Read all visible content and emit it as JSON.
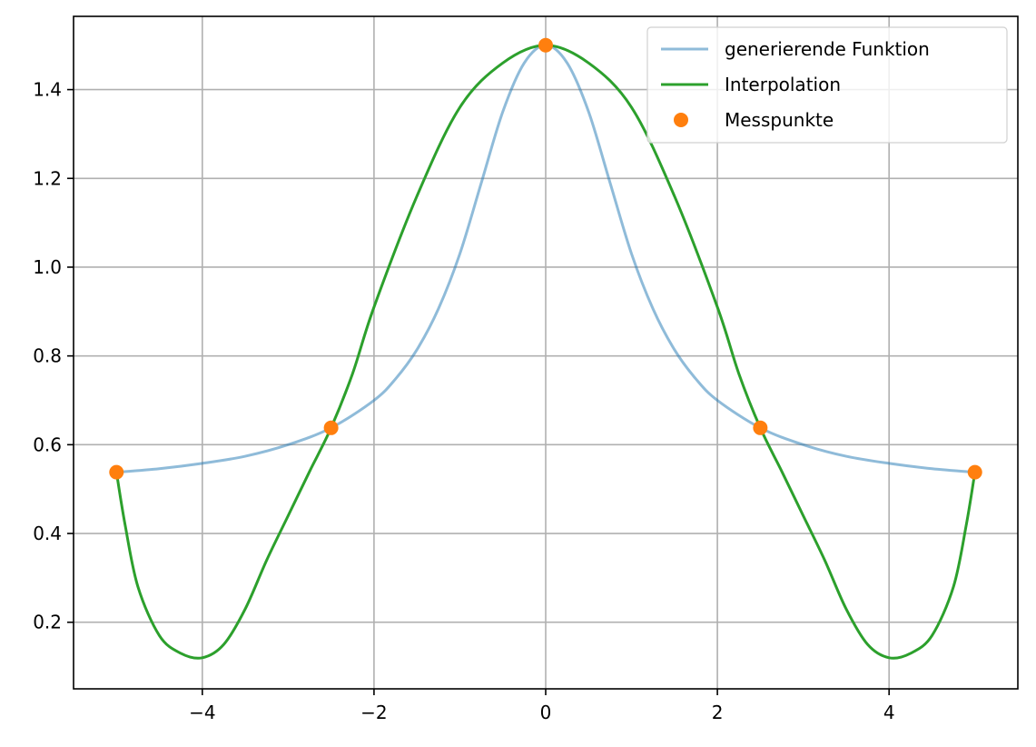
{
  "chart_data": {
    "type": "line",
    "title": "",
    "xlabel": "",
    "ylabel": "",
    "xlim": [
      -5.5,
      5.5
    ],
    "ylim": [
      0.05,
      1.565
    ],
    "xticks": [
      -4,
      -2,
      0,
      2,
      4
    ],
    "xtick_labels": [
      "−4",
      "−2",
      "0",
      "2",
      "4"
    ],
    "yticks": [
      0.2,
      0.4,
      0.6,
      0.8,
      1.0,
      1.2,
      1.4
    ],
    "ytick_labels": [
      "0.2",
      "0.4",
      "0.6",
      "0.8",
      "1.0",
      "1.2",
      "1.4"
    ],
    "grid": true,
    "legend_position": "top-right",
    "series": [
      {
        "name": "generierende Funktion",
        "kind": "line",
        "color": "#1f77b4",
        "alpha": 0.5,
        "x": [
          -5.0,
          -4.5,
          -4.0,
          -3.5,
          -3.0,
          -2.5,
          -2.0,
          -1.75,
          -1.5,
          -1.25,
          -1.0,
          -0.75,
          -0.5,
          -0.25,
          0.0,
          0.25,
          0.5,
          0.75,
          1.0,
          1.25,
          1.5,
          1.75,
          2.0,
          2.5,
          3.0,
          3.5,
          4.0,
          4.5,
          5.0
        ],
        "y": [
          0.538,
          0.546,
          0.558,
          0.574,
          0.6,
          0.638,
          0.7,
          0.748,
          0.814,
          0.906,
          1.03,
          1.19,
          1.35,
          1.46,
          1.5,
          1.46,
          1.35,
          1.19,
          1.03,
          0.906,
          0.814,
          0.748,
          0.7,
          0.638,
          0.6,
          0.574,
          0.558,
          0.546,
          0.538
        ]
      },
      {
        "name": "Interpolation",
        "kind": "line",
        "color": "#2ca02c",
        "alpha": 1.0,
        "x": [
          -5.0,
          -4.9,
          -4.75,
          -4.5,
          -4.25,
          -4.0,
          -3.75,
          -3.5,
          -3.25,
          -3.0,
          -2.75,
          -2.5,
          -2.25,
          -2.0,
          -1.5,
          -1.0,
          -0.5,
          0.0,
          0.5,
          1.0,
          1.5,
          2.0,
          2.25,
          2.5,
          2.75,
          3.0,
          3.25,
          3.5,
          3.75,
          4.0,
          4.25,
          4.5,
          4.75,
          4.9,
          5.0
        ],
        "y": [
          0.538,
          0.42,
          0.28,
          0.17,
          0.13,
          0.12,
          0.15,
          0.23,
          0.34,
          0.44,
          0.54,
          0.638,
          0.76,
          0.91,
          1.16,
          1.36,
          1.46,
          1.5,
          1.46,
          1.36,
          1.16,
          0.91,
          0.76,
          0.638,
          0.54,
          0.44,
          0.34,
          0.23,
          0.15,
          0.12,
          0.13,
          0.17,
          0.28,
          0.42,
          0.538
        ]
      },
      {
        "name": "Messpunkte",
        "kind": "scatter",
        "color": "#ff7f0e",
        "x": [
          -5.0,
          -2.5,
          0.0,
          2.5,
          5.0
        ],
        "y": [
          0.538,
          0.638,
          1.5,
          0.638,
          0.538
        ]
      }
    ]
  }
}
